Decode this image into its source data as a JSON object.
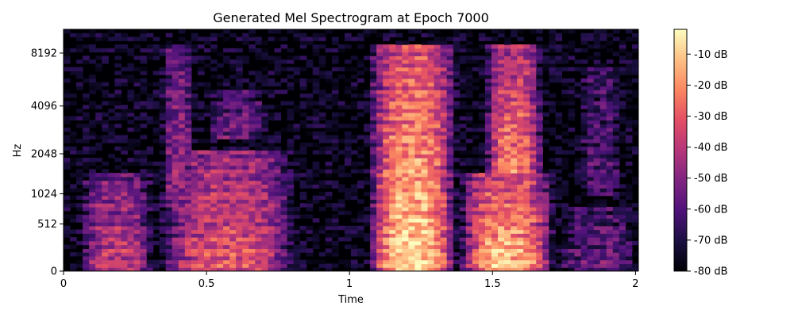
{
  "chart_data": {
    "type": "heatmap",
    "title": "Generated Mel Spectrogram at Epoch 7000",
    "xlabel": "Time",
    "ylabel": "Hz",
    "x_ticks": [
      {
        "value": 0,
        "label": "0"
      },
      {
        "value": 0.5,
        "label": "0.5"
      },
      {
        "value": 1,
        "label": "1"
      },
      {
        "value": 1.5,
        "label": "1.5"
      },
      {
        "value": 2,
        "label": "2"
      }
    ],
    "y_ticks": [
      {
        "value": 0,
        "label": "0"
      },
      {
        "value": 512,
        "label": "512"
      },
      {
        "value": 1024,
        "label": "1024"
      },
      {
        "value": 2048,
        "label": "2048"
      },
      {
        "value": 4096,
        "label": "4096"
      },
      {
        "value": 8192,
        "label": "8192"
      }
    ],
    "xlim": [
      0,
      2.01
    ],
    "y_scale": "mel",
    "ylim": [
      0,
      11025
    ],
    "colorbar": {
      "colormap": "magma",
      "range": [
        -80,
        -2
      ],
      "ticks": [
        {
          "value": -10,
          "label": "-10 dB"
        },
        {
          "value": -20,
          "label": "-20 dB"
        },
        {
          "value": -30,
          "label": "-30 dB"
        },
        {
          "value": -40,
          "label": "-40 dB"
        },
        {
          "value": -50,
          "label": "-50 dB"
        },
        {
          "value": -60,
          "label": "-60 dB"
        },
        {
          "value": -70,
          "label": "-70 dB"
        },
        {
          "value": -80,
          "label": "-80 dB"
        }
      ]
    },
    "energy_regions": [
      {
        "t_start": 0.05,
        "t_end": 0.32,
        "hz_low": 0,
        "hz_high": 1500,
        "peak_db": -35
      },
      {
        "t_start": 0.33,
        "t_end": 0.82,
        "hz_low": 0,
        "hz_high": 2200,
        "peak_db": -28
      },
      {
        "t_start": 0.34,
        "t_end": 0.46,
        "hz_low": 800,
        "hz_high": 9000,
        "peak_db": -45
      },
      {
        "t_start": 0.5,
        "t_end": 0.72,
        "hz_low": 2500,
        "hz_high": 5000,
        "peak_db": -50
      },
      {
        "t_start": 1.06,
        "t_end": 1.38,
        "hz_low": 0,
        "hz_high": 9000,
        "peak_db": -5
      },
      {
        "t_start": 1.38,
        "t_end": 1.72,
        "hz_low": 0,
        "hz_high": 1500,
        "peak_db": -8
      },
      {
        "t_start": 1.47,
        "t_end": 1.68,
        "hz_low": 1500,
        "hz_high": 9000,
        "peak_db": -20
      },
      {
        "t_start": 1.72,
        "t_end": 2.01,
        "hz_low": 0,
        "hz_high": 800,
        "peak_db": -52
      },
      {
        "t_start": 1.8,
        "t_end": 1.95,
        "hz_low": 1000,
        "hz_high": 7000,
        "peak_db": -55
      }
    ]
  }
}
